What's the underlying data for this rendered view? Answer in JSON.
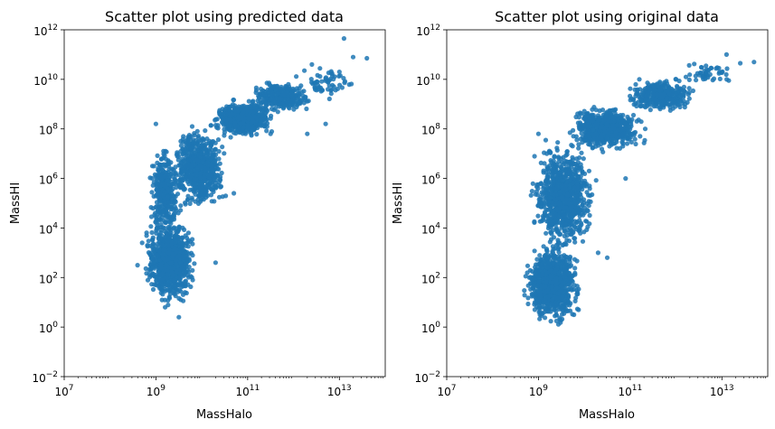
{
  "chart_data": [
    {
      "type": "scatter",
      "title": "Scatter plot using predicted data",
      "xlabel": "MassHalo",
      "ylabel": "MassHI",
      "xscale": "log",
      "yscale": "log",
      "xlim": [
        10000000.0,
        100000000000000.0
      ],
      "ylim": [
        0.01,
        1000000000000.0
      ],
      "xticks": [
        {
          "base": "10",
          "exp": "7"
        },
        {
          "base": "10",
          "exp": "9"
        },
        {
          "base": "10",
          "exp": "11"
        },
        {
          "base": "10",
          "exp": "13"
        }
      ],
      "yticks": [
        {
          "base": "10",
          "exp": "−2"
        },
        {
          "base": "10",
          "exp": "0"
        },
        {
          "base": "10",
          "exp": "2"
        },
        {
          "base": "10",
          "exp": "4"
        },
        {
          "base": "10",
          "exp": "6"
        },
        {
          "base": "10",
          "exp": "8"
        },
        {
          "base": "10",
          "exp": "10"
        },
        {
          "base": "10",
          "exp": "12"
        }
      ],
      "grid": false,
      "color": "#1f77b4",
      "density_regions_log10": [
        {
          "x": [
            8.7,
            9.9
          ],
          "y": [
            0.8,
            4.5
          ],
          "n": 900
        },
        {
          "x": [
            8.8,
            9.6
          ],
          "y": [
            3.5,
            7.5
          ],
          "n": 350
        },
        {
          "x": [
            9.3,
            10.6
          ],
          "y": [
            4.5,
            8.4
          ],
          "n": 650
        },
        {
          "x": [
            10.2,
            11.6
          ],
          "y": [
            7.6,
            9.2
          ],
          "n": 700
        },
        {
          "x": [
            11.0,
            12.5
          ],
          "y": [
            8.6,
            10.0
          ],
          "n": 300
        },
        {
          "x": [
            12.0,
            13.4
          ],
          "y": [
            9.0,
            10.8
          ],
          "n": 60
        }
      ],
      "outliers_log10": [
        [
          13.1,
          11.65
        ],
        [
          13.3,
          10.9
        ],
        [
          13.6,
          10.85
        ],
        [
          12.4,
          10.6
        ],
        [
          13.0,
          10.3
        ],
        [
          12.7,
          8.2
        ],
        [
          11.5,
          7.8
        ],
        [
          12.3,
          7.8
        ],
        [
          10.7,
          5.4
        ],
        [
          9.8,
          2.9
        ],
        [
          9.5,
          0.4
        ],
        [
          8.6,
          2.5
        ],
        [
          8.7,
          3.4
        ],
        [
          9.0,
          8.2
        ],
        [
          10.3,
          2.6
        ],
        [
          9.2,
          0.8
        ]
      ]
    },
    {
      "type": "scatter",
      "title": "Scatter plot using original data",
      "xlabel": "MassHalo",
      "ylabel": "MassHI",
      "xscale": "log",
      "yscale": "log",
      "xlim": [
        10000000.0,
        100000000000000.0
      ],
      "ylim": [
        0.01,
        1000000000000.0
      ],
      "xticks": [
        {
          "base": "10",
          "exp": "7"
        },
        {
          "base": "10",
          "exp": "9"
        },
        {
          "base": "10",
          "exp": "11"
        },
        {
          "base": "10",
          "exp": "13"
        }
      ],
      "yticks": [
        {
          "base": "10",
          "exp": "−2"
        },
        {
          "base": "10",
          "exp": "0"
        },
        {
          "base": "10",
          "exp": "2"
        },
        {
          "base": "10",
          "exp": "4"
        },
        {
          "base": "10",
          "exp": "6"
        },
        {
          "base": "10",
          "exp": "8"
        },
        {
          "base": "10",
          "exp": "10"
        },
        {
          "base": "10",
          "exp": "12"
        }
      ],
      "grid": false,
      "color": "#1f77b4",
      "density_regions_log10": [
        {
          "x": [
            8.6,
            10.0
          ],
          "y": [
            0.0,
            3.5
          ],
          "n": 900
        },
        {
          "x": [
            8.8,
            10.3
          ],
          "y": [
            2.8,
            7.8
          ],
          "n": 900
        },
        {
          "x": [
            9.6,
            11.4
          ],
          "y": [
            7.0,
            9.0
          ],
          "n": 650
        },
        {
          "x": [
            10.8,
            12.5
          ],
          "y": [
            8.6,
            10.1
          ],
          "n": 350
        },
        {
          "x": [
            12.0,
            13.5
          ],
          "y": [
            9.8,
            10.7
          ],
          "n": 50
        }
      ],
      "outliers_log10": [
        [
          13.1,
          11.0
        ],
        [
          13.7,
          10.7
        ],
        [
          13.4,
          10.65
        ],
        [
          11.9,
          9.2
        ],
        [
          12.2,
          9.0
        ],
        [
          12.0,
          10.0
        ],
        [
          10.9,
          6.0
        ],
        [
          10.5,
          2.8
        ],
        [
          10.3,
          3.0
        ],
        [
          9.0,
          7.8
        ],
        [
          8.8,
          2.0
        ],
        [
          10.1,
          4.9
        ]
      ]
    }
  ]
}
